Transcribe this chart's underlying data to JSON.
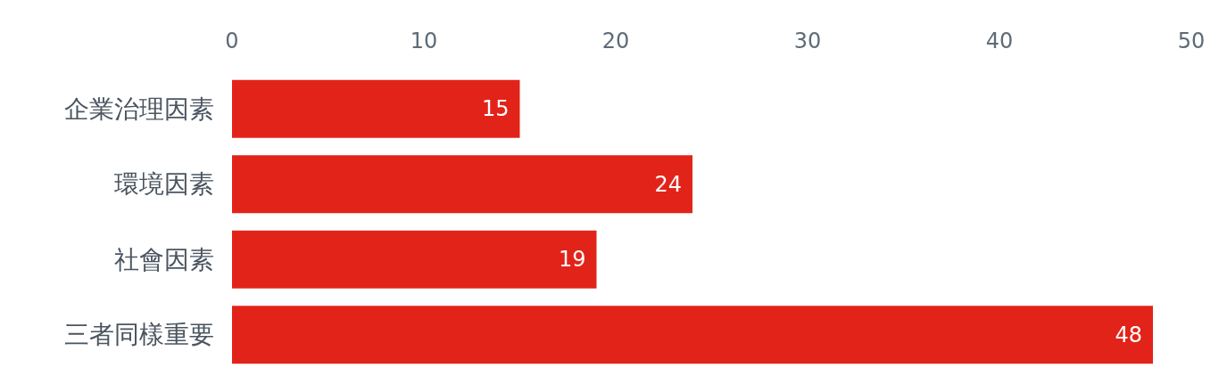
{
  "chart_data": {
    "type": "bar",
    "orientation": "horizontal",
    "categories": [
      "企業治理因素",
      "環境因素",
      "社會因素",
      "三者同樣重要"
    ],
    "values": [
      15,
      24,
      19,
      48
    ],
    "color": "#e2231a",
    "xlim": [
      0,
      50
    ],
    "xticks": [
      0,
      10,
      20,
      30,
      40,
      50
    ],
    "data_labels": true,
    "grid": false
  }
}
